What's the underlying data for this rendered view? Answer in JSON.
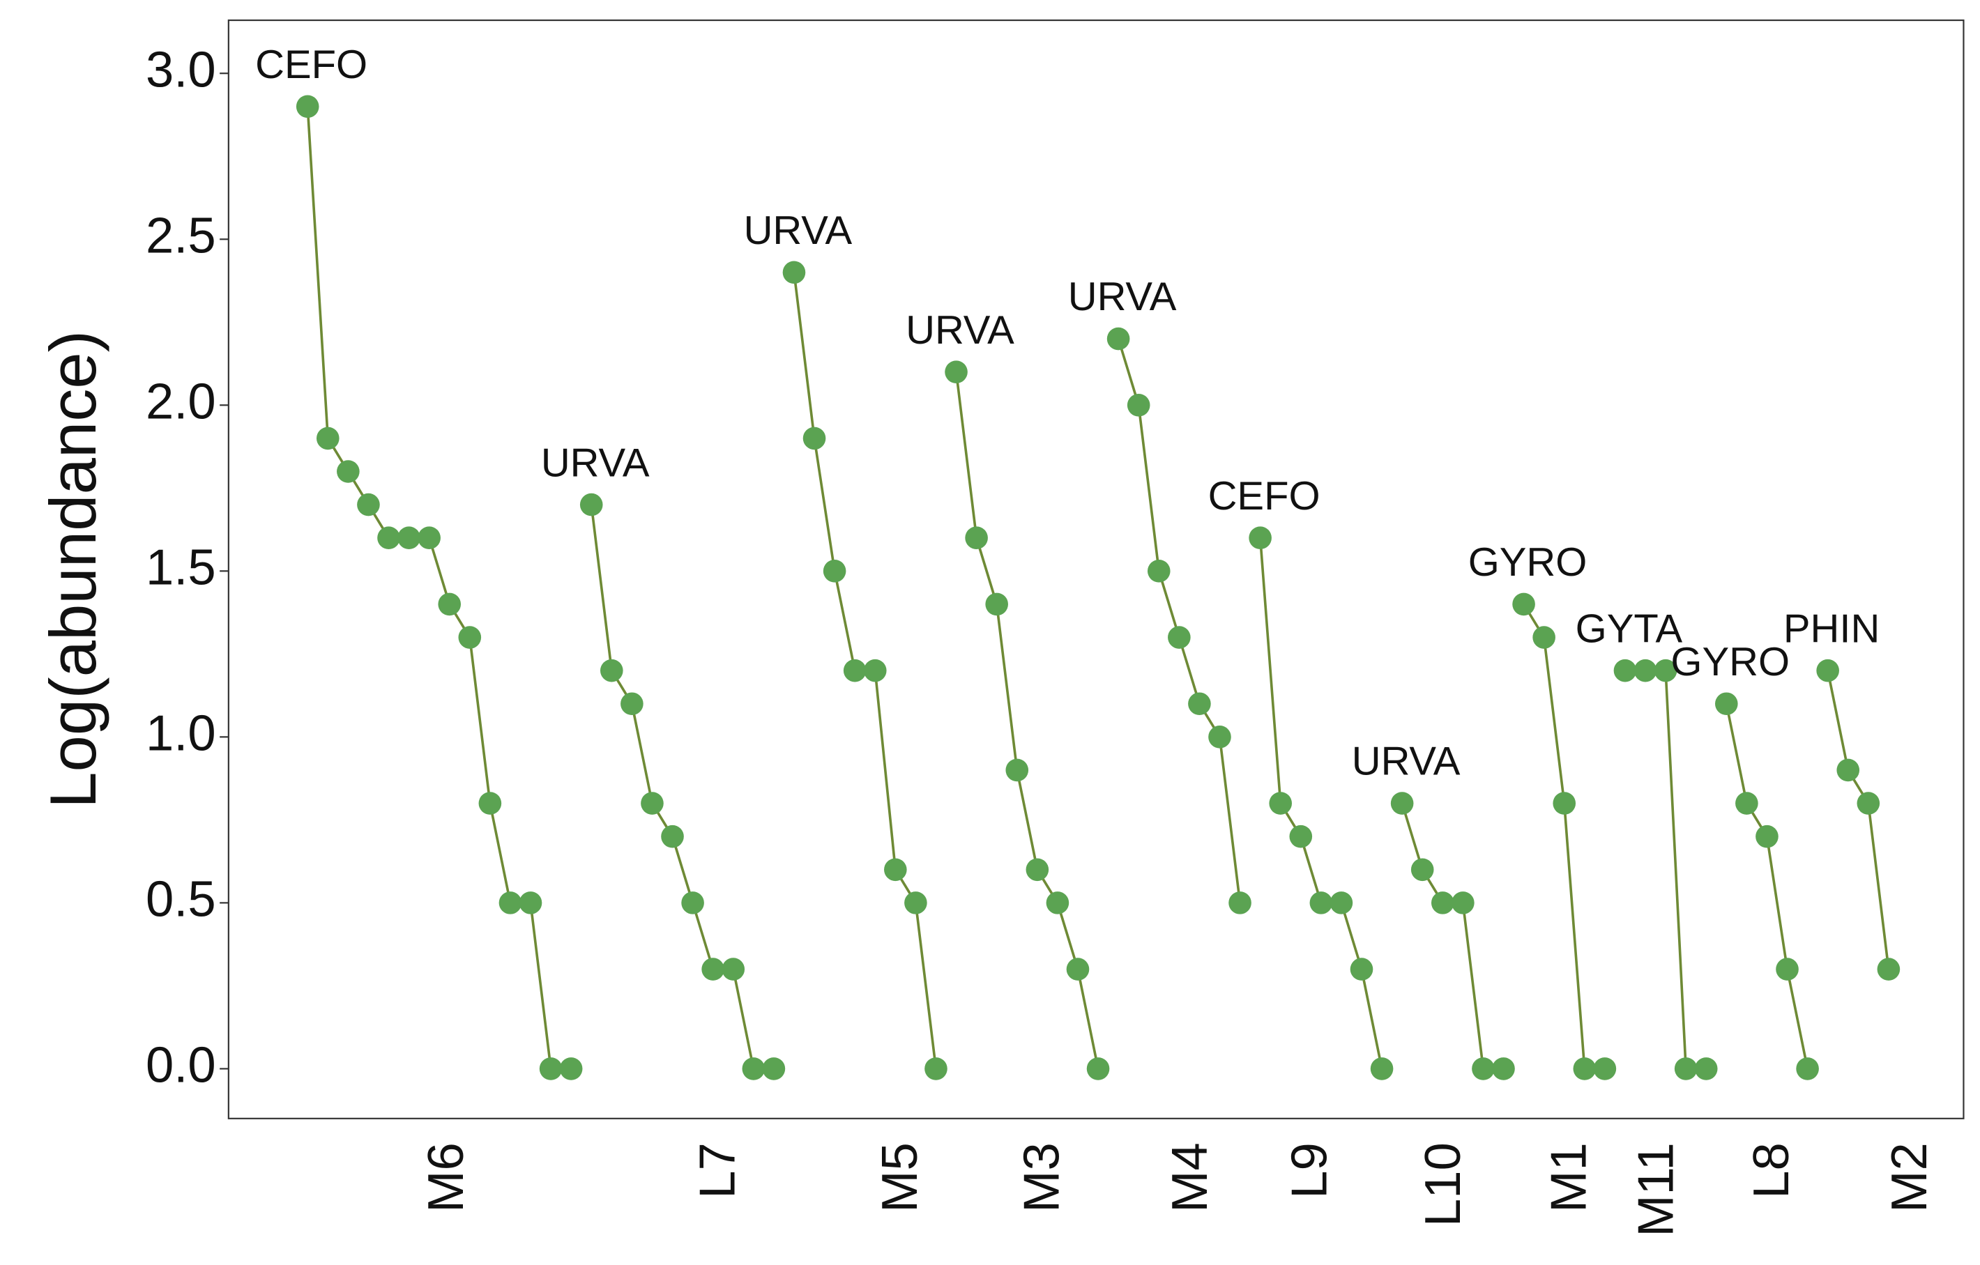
{
  "chart_data": {
    "type": "line",
    "y_label": "Log(abundance)",
    "color": "#5ba352",
    "line_color": "#6e8a35",
    "grid": false,
    "xlim": [
      -2.9,
      82.7
    ],
    "ylim": [
      -0.15,
      3.16
    ],
    "yticks": [
      {
        "value": 0,
        "label": "0.0"
      },
      0.5,
      {
        "value": 1,
        "label": "1.0"
      },
      1.5,
      {
        "value": 2,
        "label": "2.0"
      },
      2.5,
      {
        "value": 3,
        "label": "3.0"
      }
    ],
    "xticks": [
      {
        "value": 8,
        "label": "M6"
      },
      {
        "value": 21.4,
        "label": "L7"
      },
      {
        "value": 30.4,
        "label": "M5"
      },
      {
        "value": 37.4,
        "label": "M3"
      },
      {
        "value": 44.7,
        "label": "M4"
      },
      {
        "value": 50.6,
        "label": "L9"
      },
      {
        "value": 57.2,
        "label": "L10"
      },
      {
        "value": 63.4,
        "label": "M1"
      },
      {
        "value": 67.7,
        "label": "M11"
      },
      {
        "value": 73.4,
        "label": "L8"
      },
      {
        "value": 80.2,
        "label": "M2"
      }
    ],
    "series": [
      {
        "label": "CEFO",
        "x": [
          1,
          2,
          3,
          4,
          5,
          6,
          7,
          8,
          9,
          10,
          11,
          12,
          13,
          14
        ],
        "values": [
          2.9,
          1.9,
          1.8,
          1.7,
          1.6,
          1.6,
          1.6,
          1.4,
          1.3,
          0.8,
          0.5,
          0.5,
          0,
          0
        ]
      },
      {
        "label": "URVA",
        "x": [
          15,
          16,
          17,
          18,
          19,
          20,
          21,
          22,
          23,
          24
        ],
        "values": [
          1.7,
          1.2,
          1.1,
          0.8,
          0.7,
          0.5,
          0.3,
          0.3,
          0,
          0
        ]
      },
      {
        "label": "URVA",
        "x": [
          25,
          26,
          27,
          28,
          29,
          30,
          31,
          32
        ],
        "values": [
          2.4,
          1.9,
          1.5,
          1.2,
          1.2,
          0.6,
          0.5,
          0
        ]
      },
      {
        "label": "URVA",
        "x": [
          33,
          34,
          35,
          36,
          37,
          38,
          39,
          40
        ],
        "values": [
          2.1,
          1.6,
          1.4,
          0.9,
          0.6,
          0.5,
          0.3,
          0
        ]
      },
      {
        "label": "URVA",
        "x": [
          41,
          42,
          43,
          44,
          45,
          46,
          47
        ],
        "values": [
          2.2,
          2.0,
          1.5,
          1.3,
          1.1,
          1.0,
          0.5
        ]
      },
      {
        "label": "CEFO",
        "x": [
          48,
          49,
          50,
          51,
          52,
          53,
          54
        ],
        "values": [
          1.6,
          0.8,
          0.7,
          0.5,
          0.5,
          0.3,
          0
        ]
      },
      {
        "label": "URVA",
        "x": [
          55,
          56,
          57,
          58,
          59,
          60
        ],
        "values": [
          0.8,
          0.6,
          0.5,
          0.5,
          0,
          0
        ]
      },
      {
        "label": "GYRO",
        "x": [
          61,
          62,
          63,
          64,
          65
        ],
        "values": [
          1.4,
          1.3,
          0.8,
          0,
          0
        ]
      },
      {
        "label": "GYTA",
        "x": [
          66,
          67,
          68,
          69,
          70
        ],
        "values": [
          1.2,
          1.2,
          1.2,
          0,
          0
        ]
      },
      {
        "label": "GYRO",
        "x": [
          71,
          72,
          73,
          74,
          75
        ],
        "values": [
          1.1,
          0.8,
          0.7,
          0.3,
          0
        ]
      },
      {
        "label": "PHIN",
        "x": [
          76,
          77,
          78,
          79
        ],
        "values": [
          1.2,
          0.9,
          0.8,
          0.3
        ]
      }
    ]
  }
}
